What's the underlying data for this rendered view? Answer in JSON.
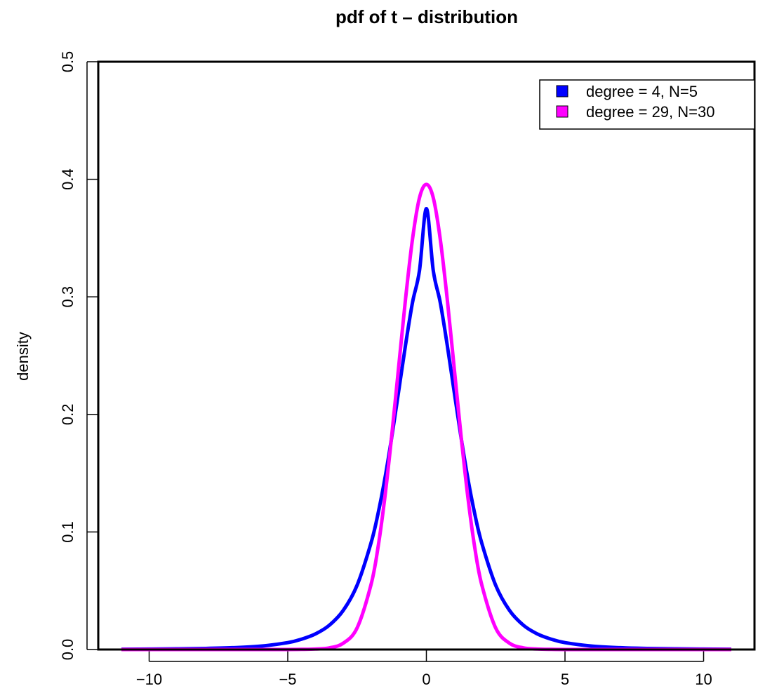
{
  "chart_data": {
    "type": "line",
    "title": "pdf of t – distribution",
    "xlabel": "",
    "ylabel": "density",
    "xlim": [
      -11,
      11
    ],
    "ylim": [
      0,
      0.5
    ],
    "x_ticks": [
      -10,
      -5,
      0,
      5,
      10
    ],
    "x_tick_labels": [
      "−10",
      "−5",
      "0",
      "5",
      "10"
    ],
    "y_ticks": [
      0.0,
      0.1,
      0.2,
      0.3,
      0.4,
      0.5
    ],
    "y_tick_labels": [
      "0.0",
      "0.1",
      "0.2",
      "0.3",
      "0.4",
      "0.5"
    ],
    "grid": false,
    "legend_position": "top-right",
    "x": [
      -11,
      -10,
      -9,
      -8,
      -7,
      -6,
      -5,
      -4.5,
      -4,
      -3.5,
      -3,
      -2.5,
      -2,
      -1.75,
      -1.5,
      -1.25,
      -1,
      -0.75,
      -0.5,
      -0.25,
      0,
      0.25,
      0.5,
      0.75,
      1,
      1.25,
      1.5,
      1.75,
      2,
      2.5,
      3,
      3.5,
      4,
      4.5,
      5,
      6,
      7,
      8,
      9,
      10,
      11
    ],
    "series": [
      {
        "name": "degree = 4, N=5",
        "color": "#0000ff",
        "values": [
          0.00026,
          0.00038,
          0.00057,
          0.00091,
          0.00155,
          0.00283,
          0.00584,
          0.00882,
          0.01329,
          0.02067,
          0.03321,
          0.05463,
          0.09037,
          0.11484,
          0.14499,
          0.18057,
          0.2197,
          0.25931,
          0.29528,
          0.3221,
          0.375,
          0.3221,
          0.29528,
          0.25931,
          0.2197,
          0.18057,
          0.14499,
          0.11484,
          0.09037,
          0.05463,
          0.03321,
          0.02067,
          0.01329,
          0.00882,
          0.00584,
          0.00283,
          0.00155,
          0.00091,
          0.00057,
          0.00038,
          0.00026
        ]
      },
      {
        "name": "degree = 29, N=30",
        "color": "#ff00ff",
        "values": [
          0.0,
          0.0,
          0.0,
          0.0,
          0.0,
          1e-05,
          3e-05,
          0.00012,
          0.00041,
          0.0014,
          0.00535,
          0.01832,
          0.05486,
          0.08597,
          0.12902,
          0.18189,
          0.24034,
          0.2986,
          0.34918,
          0.38418,
          0.39564,
          0.38418,
          0.34918,
          0.2986,
          0.24034,
          0.18189,
          0.12902,
          0.08597,
          0.05486,
          0.01832,
          0.00535,
          0.0014,
          0.00041,
          0.00012,
          3e-05,
          1e-05,
          0.0,
          0.0,
          0.0,
          0.0,
          0.0
        ]
      }
    ]
  }
}
